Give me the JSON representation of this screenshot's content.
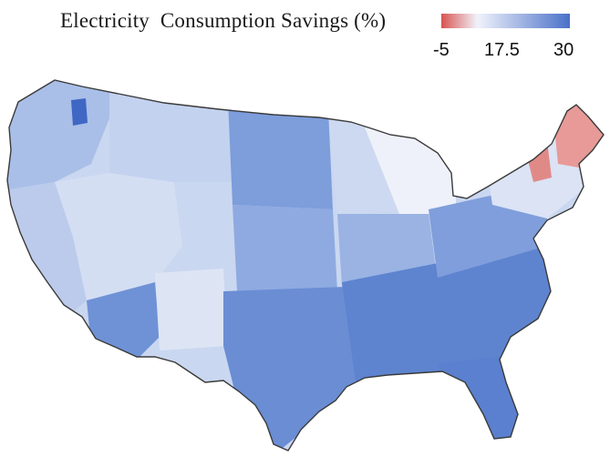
{
  "title": "Electricity  Consumption Savings (%)",
  "legend": {
    "min_label": "-5",
    "mid_label": "17.5",
    "max_label": "30",
    "colors": {
      "low": "#d9534f",
      "mid": "#f0f3fb",
      "high": "#4a70c8"
    }
  },
  "colors": {
    "ocean": "#ffffff",
    "outline": "#3a3a3a",
    "light_blue": "#cfdaf1",
    "medium_blue": "#8eaae0",
    "dark_blue": "#5c82d1",
    "very_light": "#eef1f9",
    "red": "#e4908e"
  }
}
